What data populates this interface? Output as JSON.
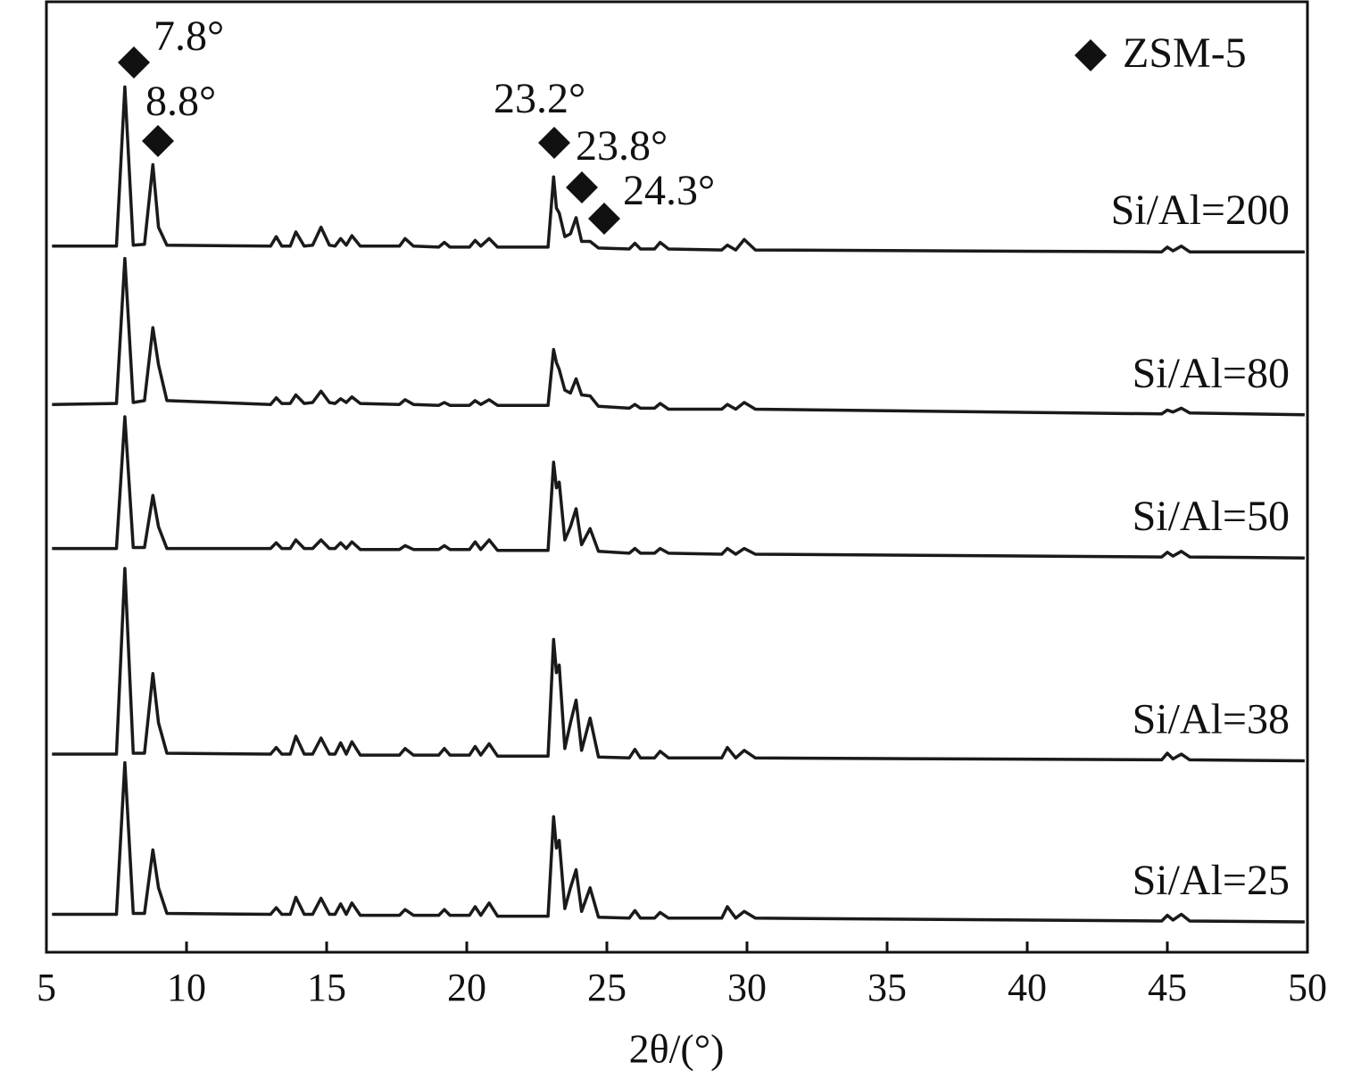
{
  "chart_data": {
    "type": "line",
    "xlabel": "2θ/(°)",
    "legend_label": "ZSM-5",
    "legend": "upper right",
    "annotations": [
      "7.8°",
      "8.8°",
      "23.2°",
      "23.8°",
      "24.3°"
    ],
    "xlim": [
      5,
      50
    ],
    "xticks": [
      5,
      10,
      15,
      20,
      25,
      30,
      35,
      40,
      45,
      50
    ],
    "ylim": [
      0,
      100
    ],
    "yticks": [],
    "x": [
      5.2,
      7.5,
      7.8,
      8.1,
      8.5,
      8.8,
      9.0,
      9.3,
      13.0,
      13.2,
      13.4,
      13.7,
      13.9,
      14.2,
      14.5,
      14.8,
      15.1,
      15.3,
      15.5,
      15.7,
      15.9,
      16.2,
      17.6,
      17.8,
      18.1,
      19.0,
      19.2,
      19.4,
      20.1,
      20.3,
      20.5,
      20.8,
      21.1,
      22.9,
      23.1,
      23.2,
      23.3,
      23.5,
      23.7,
      23.9,
      24.1,
      24.4,
      24.7,
      25.8,
      26.0,
      26.2,
      26.7,
      26.9,
      27.2,
      29.1,
      29.3,
      29.6,
      29.9,
      30.3,
      44.8,
      45.0,
      45.2,
      45.5,
      45.8,
      49.9
    ],
    "series": [
      {
        "name": "Si/Al=200",
        "color": "#1a1a1a",
        "values": [
          74.5,
          74.5,
          91.3,
          74.6,
          74.7,
          83.1,
          76.5,
          74.6,
          74.5,
          75.5,
          74.5,
          74.5,
          76.0,
          74.5,
          74.6,
          76.5,
          74.6,
          74.5,
          75.3,
          74.6,
          75.6,
          74.5,
          74.5,
          75.3,
          74.5,
          74.4,
          74.9,
          74.4,
          74.4,
          75.1,
          74.5,
          75.3,
          74.4,
          74.4,
          81.8,
          78.5,
          78.0,
          75.5,
          75.8,
          77.5,
          75.0,
          75.0,
          74.3,
          74.2,
          74.8,
          74.2,
          74.2,
          74.9,
          74.2,
          74.1,
          74.6,
          74.1,
          75.2,
          74.1,
          73.9,
          74.4,
          74.0,
          74.5,
          73.9,
          73.9
        ]
      },
      {
        "name": "Si/Al=80",
        "color": "#1a1a1a",
        "values": [
          57.8,
          57.9,
          73.2,
          58.0,
          58.2,
          65.9,
          62.0,
          58.2,
          57.8,
          58.5,
          57.9,
          57.9,
          58.8,
          57.9,
          58.0,
          59.2,
          58.0,
          57.9,
          58.4,
          58.0,
          58.6,
          57.9,
          57.8,
          58.3,
          57.8,
          57.7,
          58.0,
          57.7,
          57.7,
          58.2,
          57.8,
          58.3,
          57.7,
          57.7,
          63.6,
          62.2,
          61.5,
          59.3,
          59.0,
          60.5,
          58.8,
          58.7,
          57.6,
          57.4,
          57.8,
          57.4,
          57.4,
          57.9,
          57.3,
          57.3,
          57.8,
          57.3,
          58.0,
          57.3,
          56.8,
          57.2,
          57.0,
          57.4,
          56.9,
          56.7
        ]
      },
      {
        "name": "Si/Al=50",
        "color": "#1a1a1a",
        "values": [
          42.6,
          42.6,
          56.5,
          42.7,
          42.7,
          48.2,
          44.9,
          42.6,
          42.6,
          43.2,
          42.6,
          42.6,
          43.5,
          42.6,
          42.6,
          43.5,
          42.6,
          42.6,
          43.2,
          42.6,
          43.3,
          42.5,
          42.5,
          42.9,
          42.5,
          42.5,
          42.9,
          42.5,
          42.5,
          43.3,
          42.5,
          43.5,
          42.4,
          42.4,
          51.7,
          49.0,
          49.6,
          43.5,
          44.9,
          46.8,
          43.0,
          44.7,
          42.3,
          42.1,
          42.6,
          42.1,
          42.1,
          42.6,
          42.1,
          42.0,
          42.6,
          42.0,
          42.6,
          42.0,
          41.7,
          42.2,
          41.8,
          42.3,
          41.7,
          41.6
        ]
      },
      {
        "name": "Si/Al=38",
        "color": "#1a1a1a",
        "values": [
          20.9,
          20.9,
          40.5,
          21.0,
          21.0,
          29.4,
          24.2,
          21.0,
          20.9,
          21.6,
          20.9,
          20.9,
          22.8,
          20.9,
          20.9,
          22.6,
          20.9,
          20.9,
          22.1,
          20.9,
          22.2,
          20.8,
          20.8,
          21.5,
          20.8,
          20.8,
          21.5,
          20.8,
          20.8,
          21.7,
          20.8,
          22.0,
          20.7,
          20.7,
          33.0,
          29.5,
          30.3,
          21.5,
          24.2,
          26.6,
          21.3,
          24.7,
          20.6,
          20.5,
          21.4,
          20.5,
          20.5,
          21.2,
          20.5,
          20.5,
          21.6,
          20.5,
          21.3,
          20.5,
          20.3,
          21.0,
          20.4,
          20.9,
          20.3,
          20.2
        ]
      },
      {
        "name": "Si/Al=25",
        "color": "#1a1a1a",
        "values": [
          4.0,
          4.0,
          20.0,
          4.1,
          4.1,
          10.8,
          6.8,
          4.1,
          4.0,
          4.7,
          4.0,
          4.0,
          5.8,
          4.0,
          4.0,
          5.7,
          4.0,
          4.0,
          5.1,
          4.0,
          5.2,
          3.9,
          3.9,
          4.5,
          3.9,
          3.9,
          4.5,
          3.9,
          3.9,
          4.8,
          3.9,
          5.2,
          3.8,
          3.8,
          14.3,
          11.0,
          11.8,
          4.6,
          6.8,
          8.7,
          4.3,
          6.8,
          3.7,
          3.6,
          4.4,
          3.6,
          3.6,
          4.2,
          3.6,
          3.6,
          4.8,
          3.6,
          4.3,
          3.6,
          3.3,
          3.9,
          3.4,
          4.0,
          3.3,
          3.2
        ]
      }
    ]
  }
}
